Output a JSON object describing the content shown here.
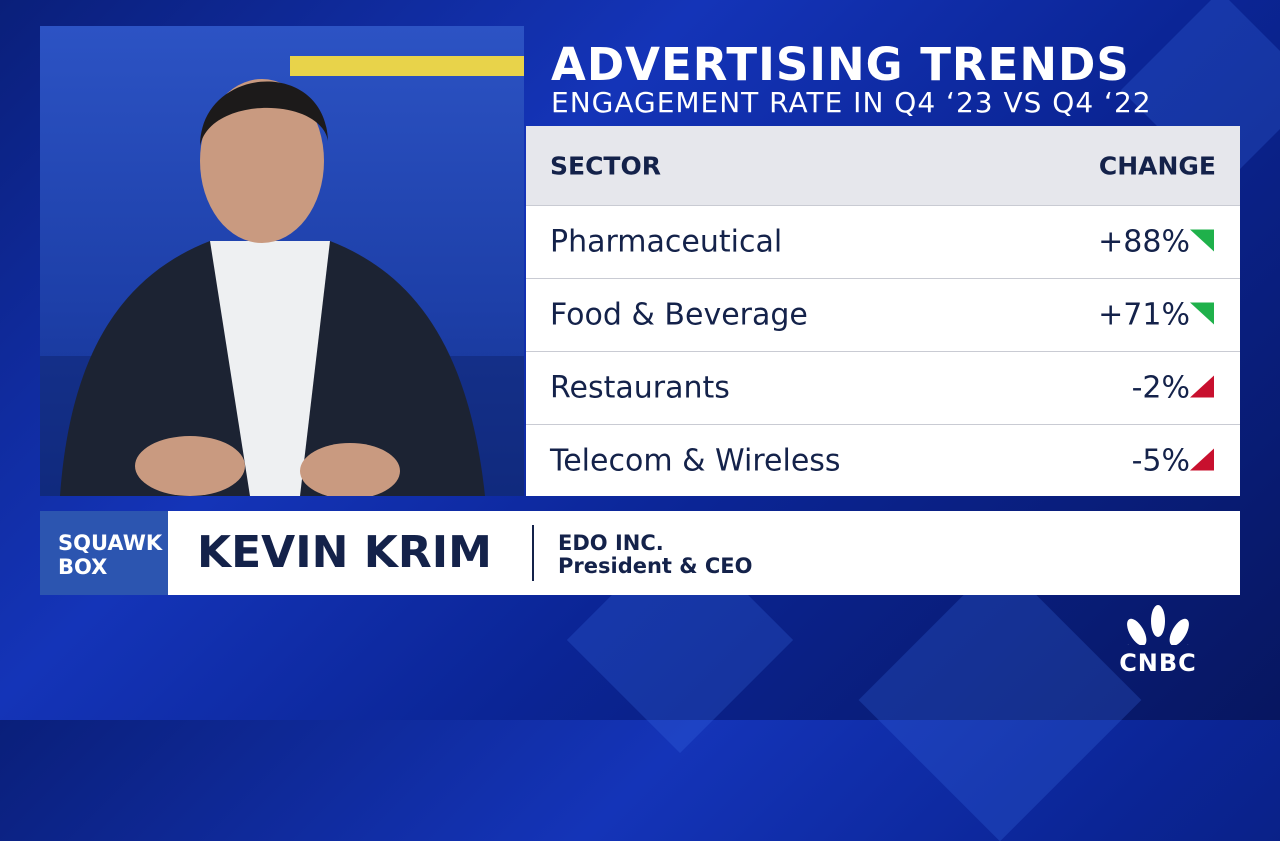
{
  "header": {
    "title": "ADVERTISING TRENDS",
    "subtitle": "ENGAGEMENT RATE IN Q4 ‘23 VS Q4 ‘22"
  },
  "table": {
    "columns": [
      "SECTOR",
      "CHANGE"
    ],
    "rows": [
      [
        "Pharmaceutical",
        "+88%"
      ],
      [
        "Food & Beverage",
        "+71%"
      ],
      [
        "Restaurants",
        "-2%"
      ],
      [
        "Telecom & Wireless",
        "-5%"
      ]
    ]
  },
  "lower_third": {
    "show": [
      "SQUAWK",
      "BOX"
    ],
    "name": "KEVIN KRIM",
    "company": "EDO INC.",
    "role": "President & CEO"
  },
  "logo": "CNBC"
}
